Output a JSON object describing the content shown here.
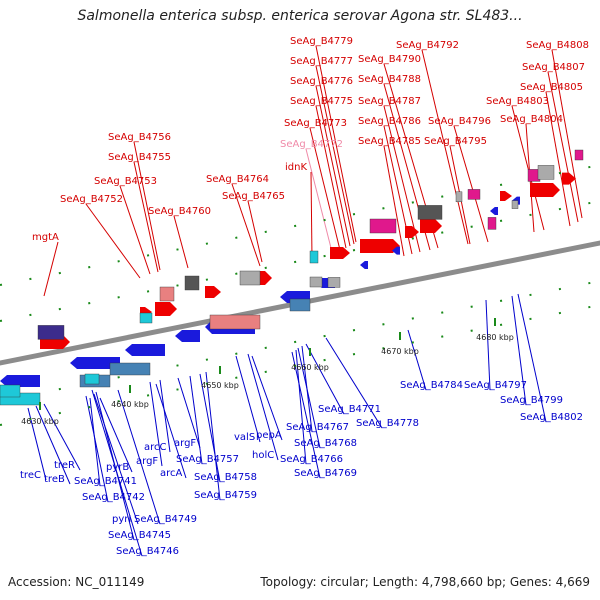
{
  "title": "Salmonella enterica subsp. enterica serovar Agona str. SL483...",
  "footer": {
    "accession": "Accession: NC_011149",
    "summary": "Topology: circular; Length: 4,798,660 bp; Genes: 4,669"
  },
  "colors": {
    "forward_label": "#d40000",
    "reverse_label": "#0000cc",
    "highlight_label": "#f08aa8",
    "backbone": "#8c8c8c",
    "tick_green": "#1a8a1a",
    "forward_gene": "#ee0000",
    "reverse_gene": "#1a1adc",
    "grey_block": "#aaaaaa",
    "dark_block": "#555555",
    "magenta_block": "#e0188c",
    "cyan_block": "#1ec8d8",
    "steel_block": "#4682b4",
    "purple_block": "#3c2c8c",
    "salmon_block": "#e88080"
  },
  "scale_ticks": [
    "4630 kbp",
    "4640 kbp",
    "4650 kbp",
    "4660 kbp",
    "4670 kbp",
    "4680 kbp"
  ],
  "top_labels": [
    "SeAg_B4779",
    "SeAg_B4777",
    "SeAg_B4776",
    "SeAg_B4775",
    "SeAg_B4773",
    "SeAg_B4772",
    "idnK",
    "SeAg_B4792",
    "SeAg_B4790",
    "SeAg_B4788",
    "SeAg_B4787",
    "SeAg_B4786",
    "SeAg_B4785",
    "SeAg_B4796",
    "SeAg_B4795",
    "SeAg_B4808",
    "SeAg_B4807",
    "SeAg_B4805",
    "SeAg_B4803",
    "SeAg_B4804",
    "SeAg_B4756",
    "SeAg_B4755",
    "SeAg_B4753",
    "SeAg_B4752",
    "SeAg_B4760",
    "SeAg_B4764",
    "SeAg_B4765",
    "mgtA"
  ],
  "bottom_labels": [
    "treC",
    "treR",
    "treB",
    "pyrB",
    "SeAg_B4741",
    "SeAg_B4742",
    "pyrI",
    "SeAg_B4749",
    "SeAg_B4745",
    "SeAg_B4746",
    "arcC",
    "argF",
    "arcA",
    "argF",
    "SeAg_B4757",
    "SeAg_B4758",
    "SeAg_B4759",
    "valS",
    "pepA",
    "holC",
    "SeAg_B4771",
    "SeAg_B4767",
    "SeAg_B4768",
    "SeAg_B4766",
    "SeAg_B4769",
    "SeAg_B4778",
    "SeAg_B4784",
    "SeAg_B4797",
    "SeAg_B4799",
    "SeAg_B4802"
  ]
}
